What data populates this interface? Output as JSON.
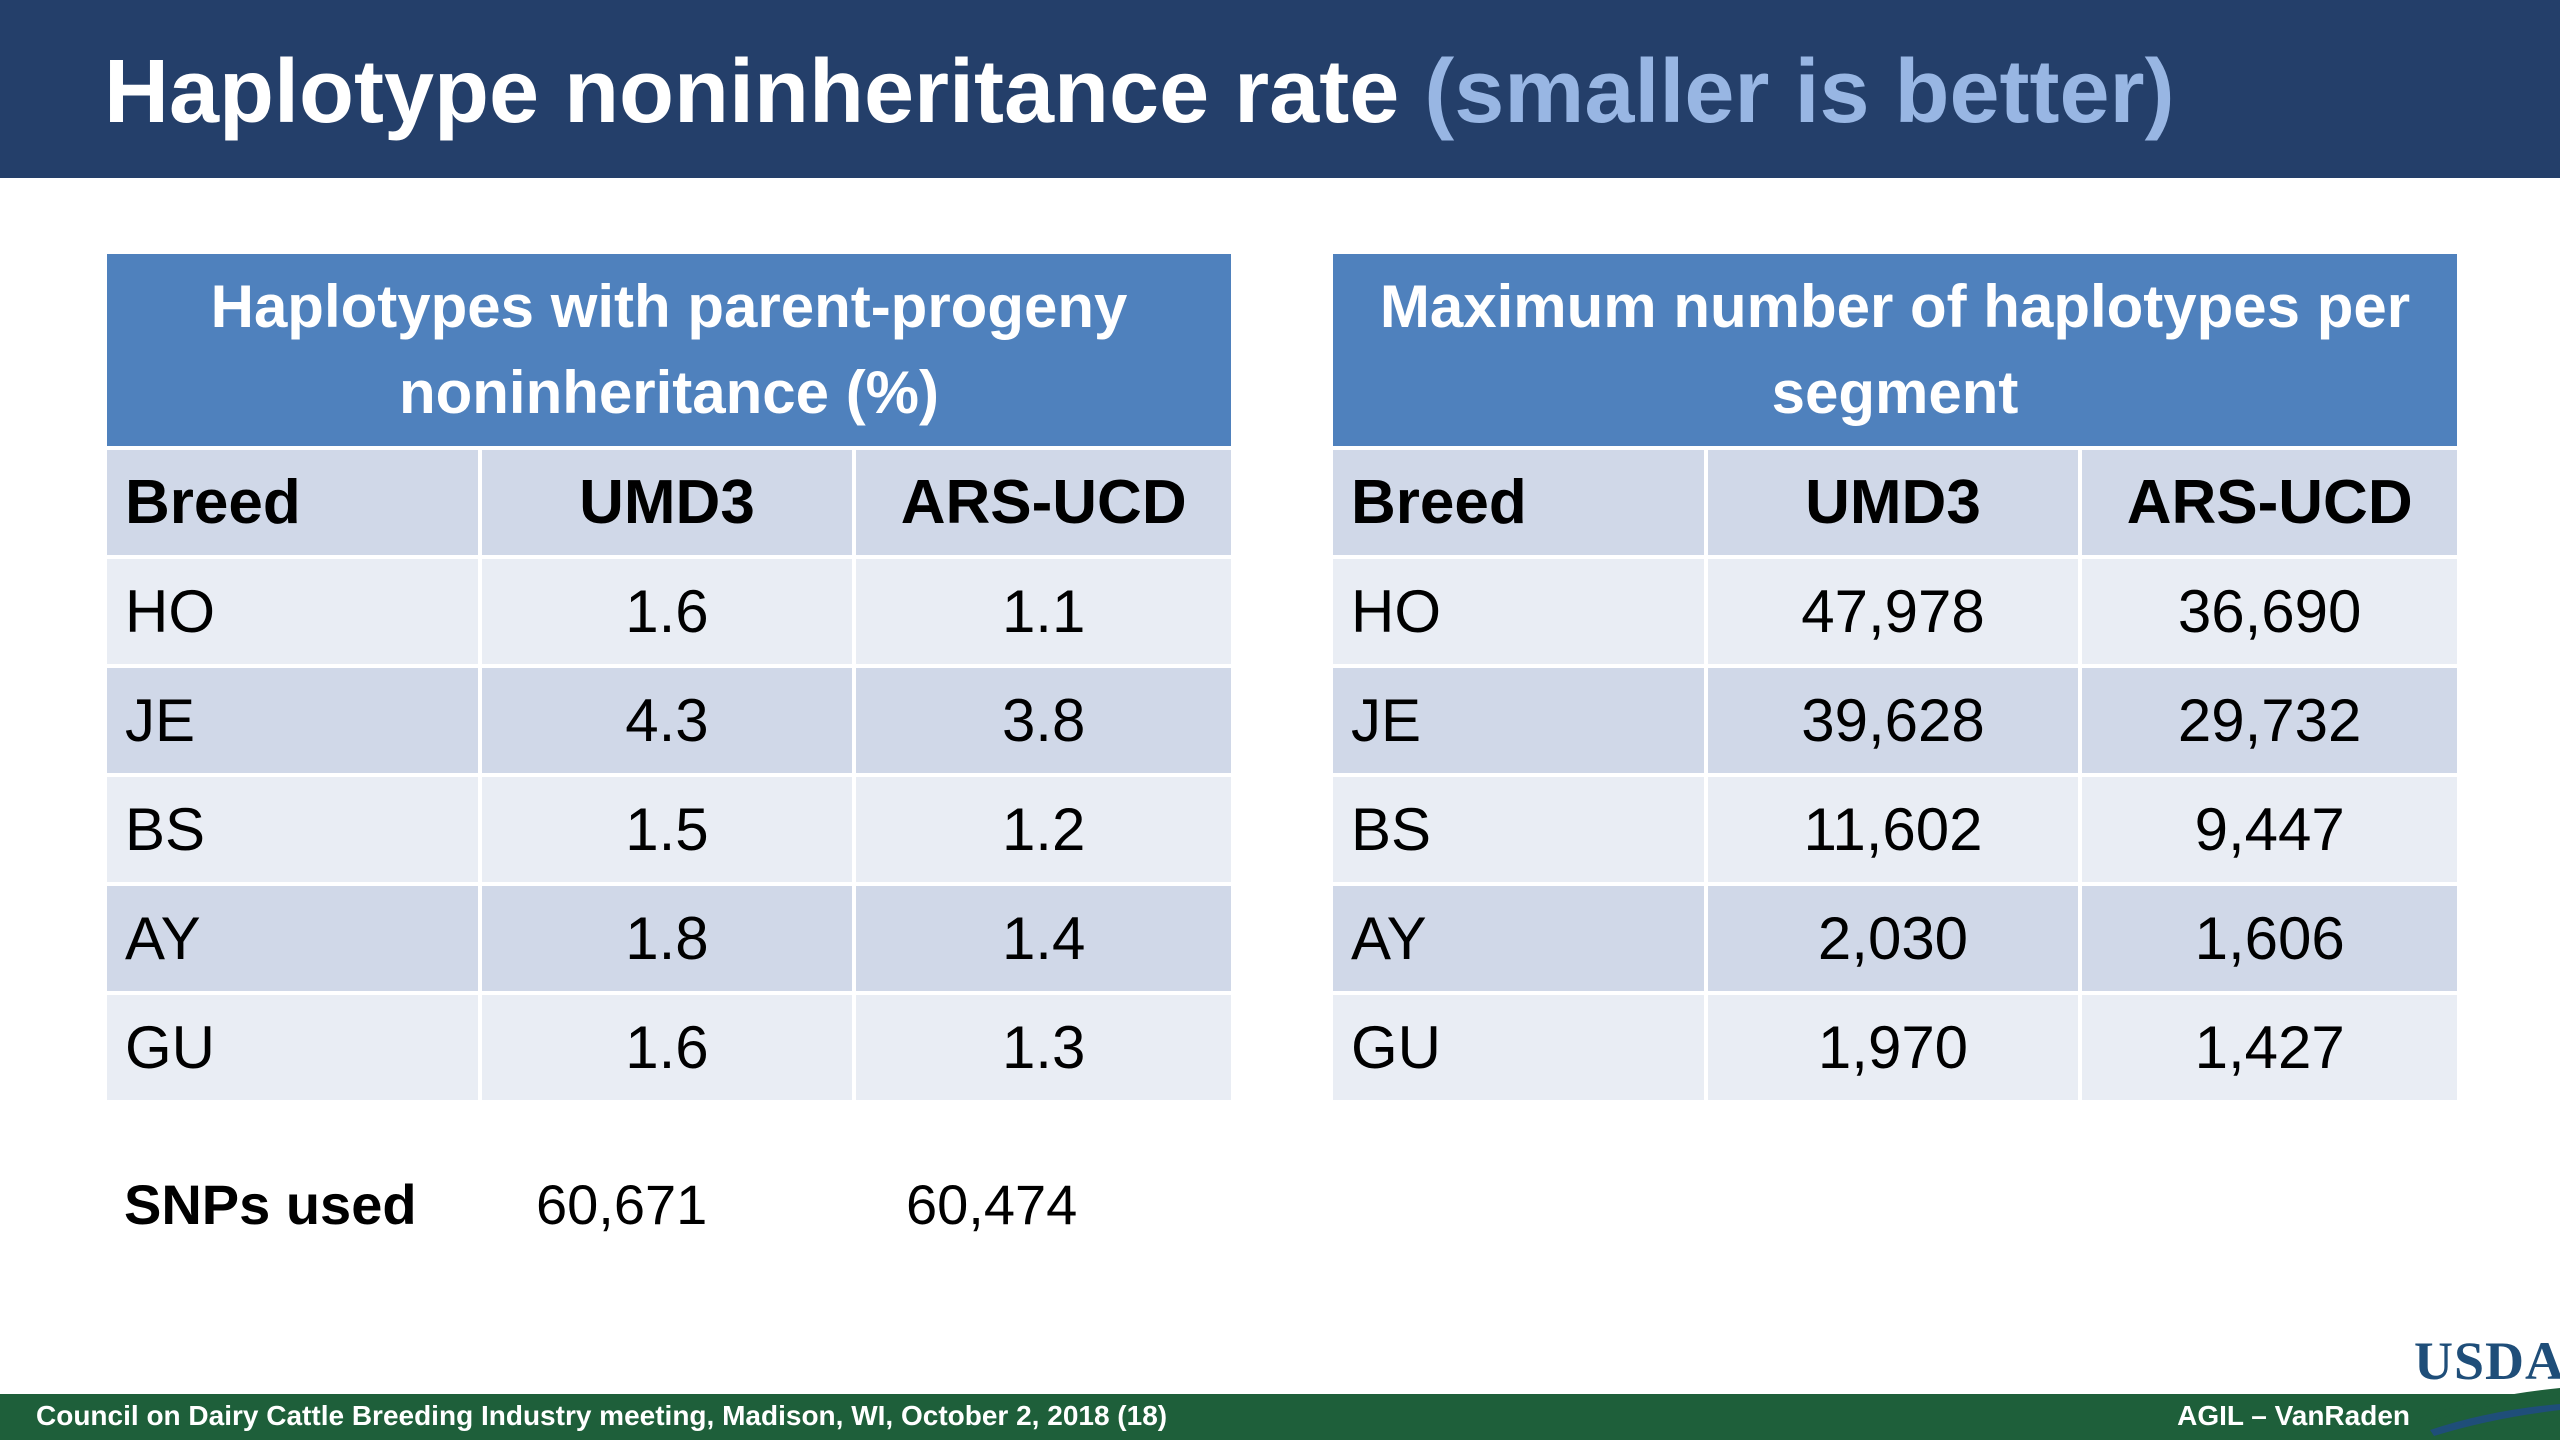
{
  "title": {
    "main": "Haplotype noninheritance rate",
    "accent": "(smaller is better)"
  },
  "left_table": {
    "header": "Haplotypes with parent-progeny noninheritance (%)",
    "columns": [
      "Breed",
      "UMD3",
      "ARS-UCD"
    ],
    "rows": [
      [
        "HO",
        "1.6",
        "1.1"
      ],
      [
        "JE",
        "4.3",
        "3.8"
      ],
      [
        "BS",
        "1.5",
        "1.2"
      ],
      [
        "AY",
        "1.8",
        "1.4"
      ],
      [
        "GU",
        "1.6",
        "1.3"
      ]
    ]
  },
  "right_table": {
    "header": "Maximum number of haplotypes per segment",
    "columns": [
      "Breed",
      "UMD3",
      "ARS-UCD"
    ],
    "rows": [
      [
        "HO",
        "47,978",
        "36,690"
      ],
      [
        "JE",
        "39,628",
        "29,732"
      ],
      [
        "BS",
        "11,602",
        "9,447"
      ],
      [
        "AY",
        "2,030",
        "1,606"
      ],
      [
        "GU",
        "1,970",
        "1,427"
      ]
    ]
  },
  "snps": {
    "label": "SNPs used",
    "umd3": "60,671",
    "ars_ucd": "60,474"
  },
  "footer": {
    "left": "Council on Dairy Cattle Breeding Industry meeting, Madison, WI, October 2, 2018 (18)",
    "right": "AGIL – VanRaden"
  },
  "logo": {
    "text": "USDA"
  },
  "colors": {
    "title_bar": "#243f6a",
    "title_accent": "#98b6e3",
    "table_header": "#4f81bd",
    "row_dark": "#d0d8e8",
    "row_light": "#e9edf4",
    "footer": "#1e5f3a"
  }
}
